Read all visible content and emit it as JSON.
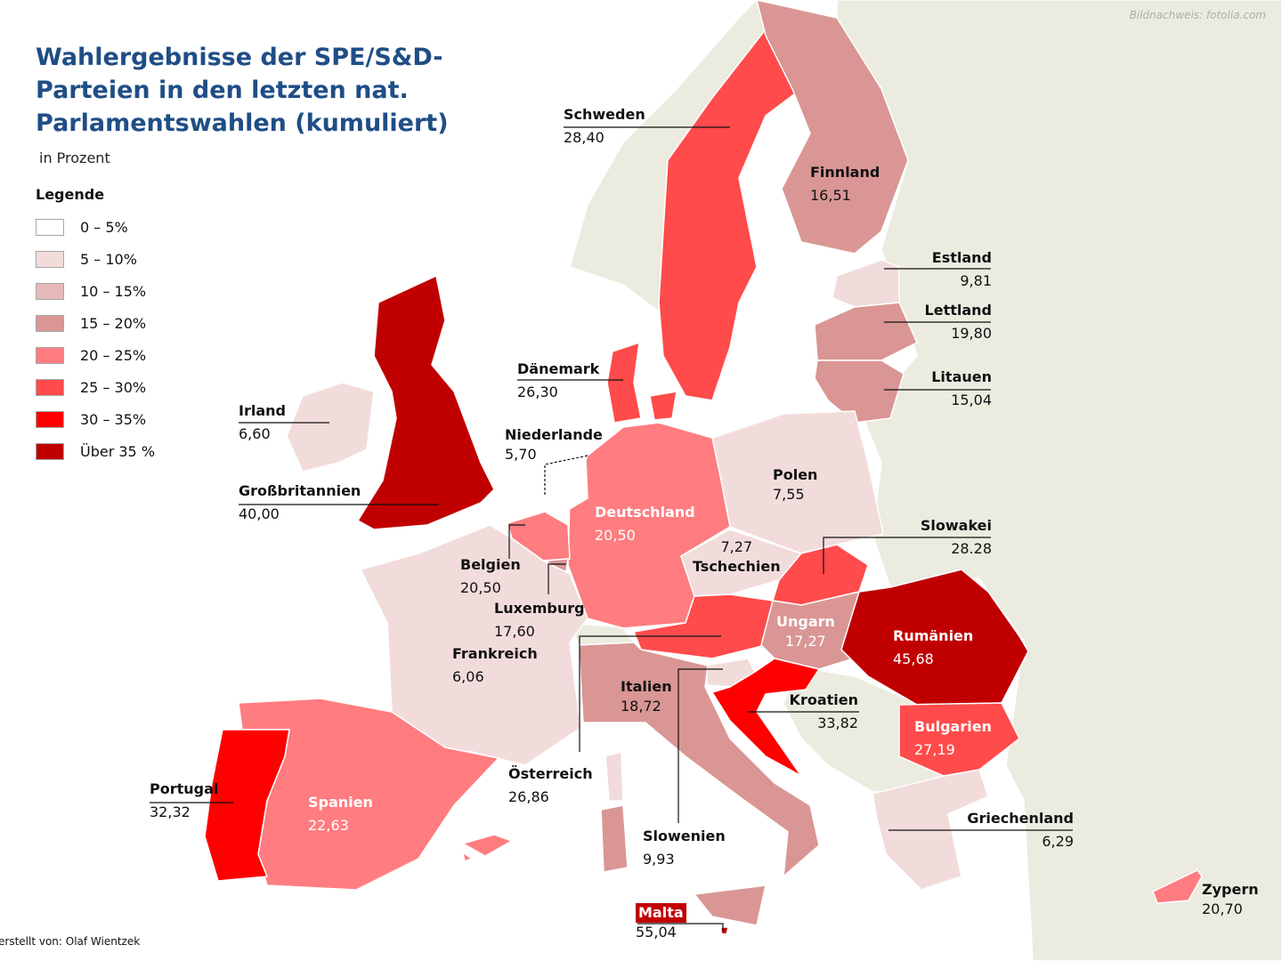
{
  "title": "Wahlergebnisse der SPE/S&D-Parteien in den letzten nat. Parlamentswahlen (kumuliert)",
  "subtitle": "in Prozent",
  "credit": "Bildnachweis: fotolia.com",
  "author": "erstellt von: Olaf Wientzek",
  "legend": {
    "title": "Legende",
    "items": [
      {
        "label": "0 – 5%",
        "color": "#ffffff"
      },
      {
        "label": "5 – 10%",
        "color": "#f2dcdb"
      },
      {
        "label": "10 – 15%",
        "color": "#e6b9b8"
      },
      {
        "label": "15 – 20%",
        "color": "#d99694"
      },
      {
        "label": "20 – 25%",
        "color": "#ff7c80"
      },
      {
        "label": "25 – 30%",
        "color": "#ff4b4b"
      },
      {
        "label": "30 – 35%",
        "color": "#ff0000"
      },
      {
        "label": "Über 35 %",
        "color": "#c00000"
      }
    ]
  },
  "non_eu_color": "#ecebe0",
  "countries": {
    "schweden": {
      "name": "Schweden",
      "value": "28,40"
    },
    "finnland": {
      "name": "Finnland",
      "value": "16,51"
    },
    "estland": {
      "name": "Estland",
      "value": "9,81"
    },
    "lettland": {
      "name": "Lettland",
      "value": "19,80"
    },
    "litauen": {
      "name": "Litauen",
      "value": "15,04"
    },
    "daenemark": {
      "name": "Dänemark",
      "value": "26,30"
    },
    "irland": {
      "name": "Irland",
      "value": "6,60"
    },
    "niederlande": {
      "name": "Niederlande",
      "value": "5,70"
    },
    "grossbritannien": {
      "name": "Großbritannien",
      "value": "40,00"
    },
    "polen": {
      "name": "Polen",
      "value": "7,55"
    },
    "deutschland": {
      "name": "Deutschland",
      "value": "20,50"
    },
    "slowakei": {
      "name": "Slowakei",
      "value": "28.28"
    },
    "tschechien": {
      "name": "Tschechien",
      "value": "7,27"
    },
    "belgien": {
      "name": "Belgien",
      "value": "20,50"
    },
    "luxemburg": {
      "name": "Luxemburg",
      "value": "17,60"
    },
    "ungarn": {
      "name": "Ungarn",
      "value": "17,27"
    },
    "rumaenien": {
      "name": "Rumänien",
      "value": "45,68"
    },
    "frankreich": {
      "name": "Frankreich",
      "value": "6,06"
    },
    "italien": {
      "name": "Italien",
      "value": "18,72"
    },
    "kroatien": {
      "name": "Kroatien",
      "value": "33,82"
    },
    "bulgarien": {
      "name": "Bulgarien",
      "value": "27,19"
    },
    "oesterreich": {
      "name": "Österreich",
      "value": "26,86"
    },
    "slowenien": {
      "name": "Slowenien",
      "value": "9,93"
    },
    "portugal": {
      "name": "Portugal",
      "value": "32,32"
    },
    "spanien": {
      "name": "Spanien",
      "value": "22,63"
    },
    "griechenland": {
      "name": "Griechenland",
      "value": "6,29"
    },
    "zypern": {
      "name": "Zypern",
      "value": "20,70"
    },
    "malta": {
      "name": "Malta",
      "value": "55,04"
    }
  }
}
